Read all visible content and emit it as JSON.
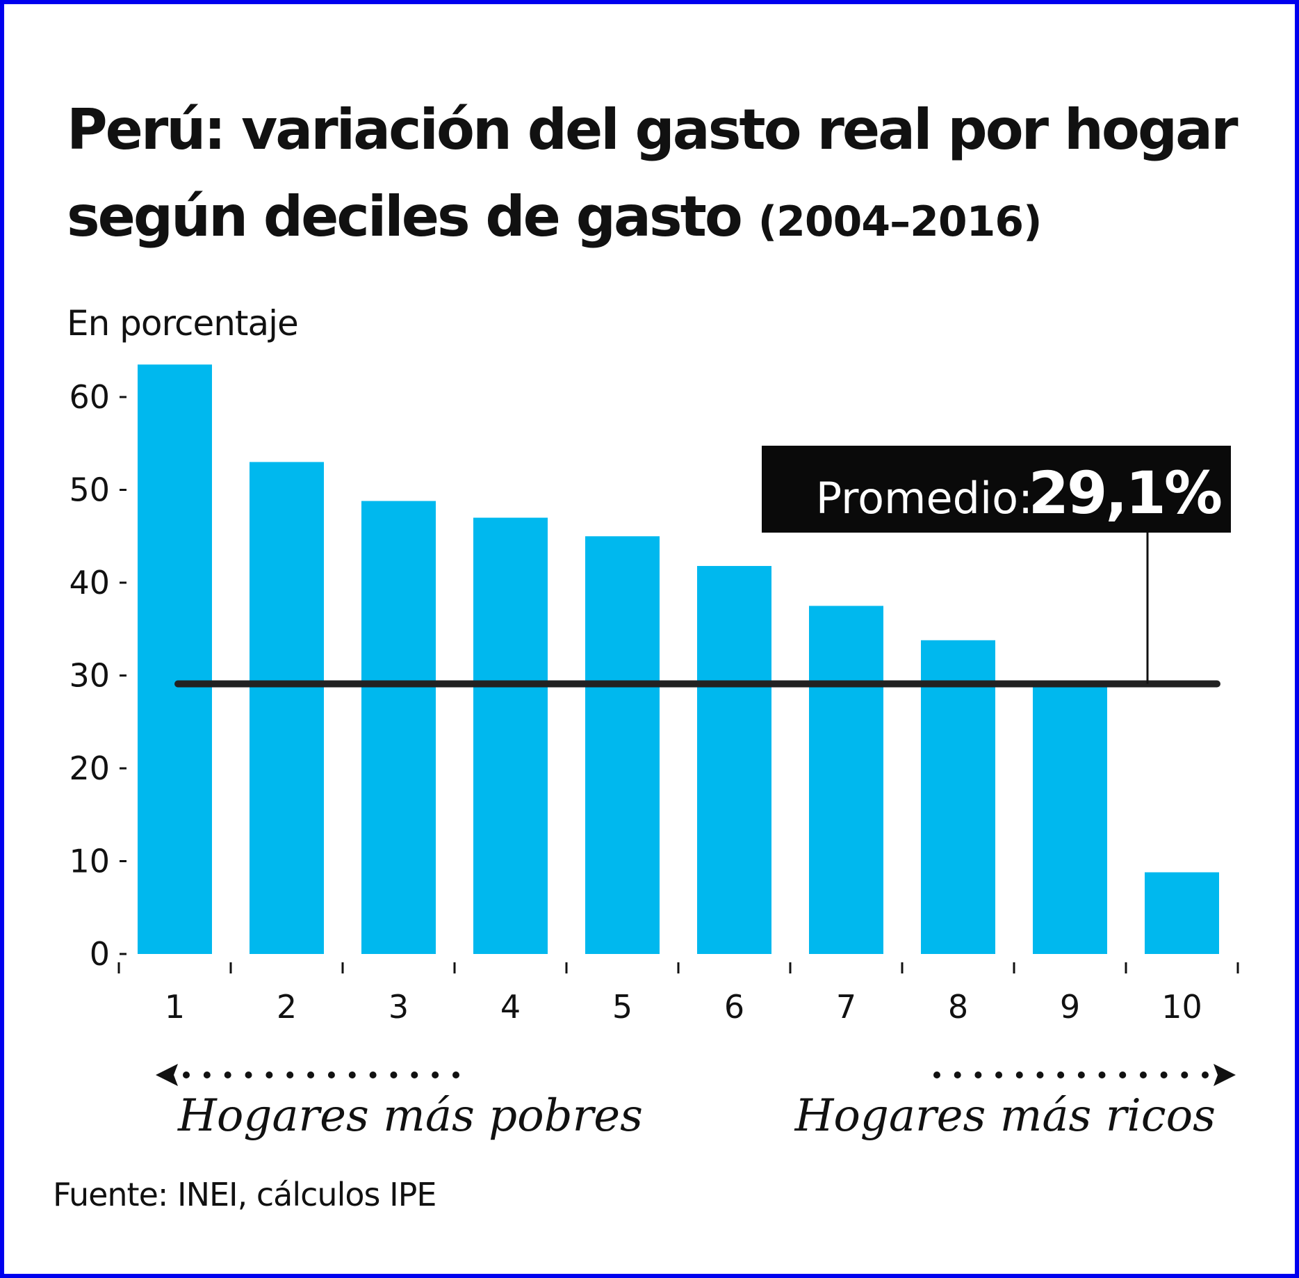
{
  "title_main": "Perú: variación del gasto real por hogar según deciles de gasto",
  "title_years": "(2004–2016)",
  "subtitle": "En porcentaje",
  "source": "Fuente: INEI, cálculos IPE",
  "average": {
    "label": "Promedio:",
    "value": 29.1,
    "value_text": "29,1%"
  },
  "notes": {
    "left": "Hogares más pobres",
    "right": "Hogares más ricos"
  },
  "colors": {
    "bar": "#00b8ee",
    "line": "#222222",
    "box": "#0a0a0a",
    "border": "#0000ee"
  },
  "chart_data": {
    "type": "bar",
    "categories": [
      "1",
      "2",
      "3",
      "4",
      "5",
      "6",
      "7",
      "8",
      "9",
      "10"
    ],
    "values": [
      63.5,
      53,
      48.8,
      47,
      45,
      41.8,
      37.5,
      33.8,
      29,
      8.8
    ],
    "ylim": [
      0,
      65
    ],
    "yticks": [
      0,
      10,
      20,
      30,
      40,
      50,
      60
    ],
    "grid": false,
    "legend": "none"
  }
}
